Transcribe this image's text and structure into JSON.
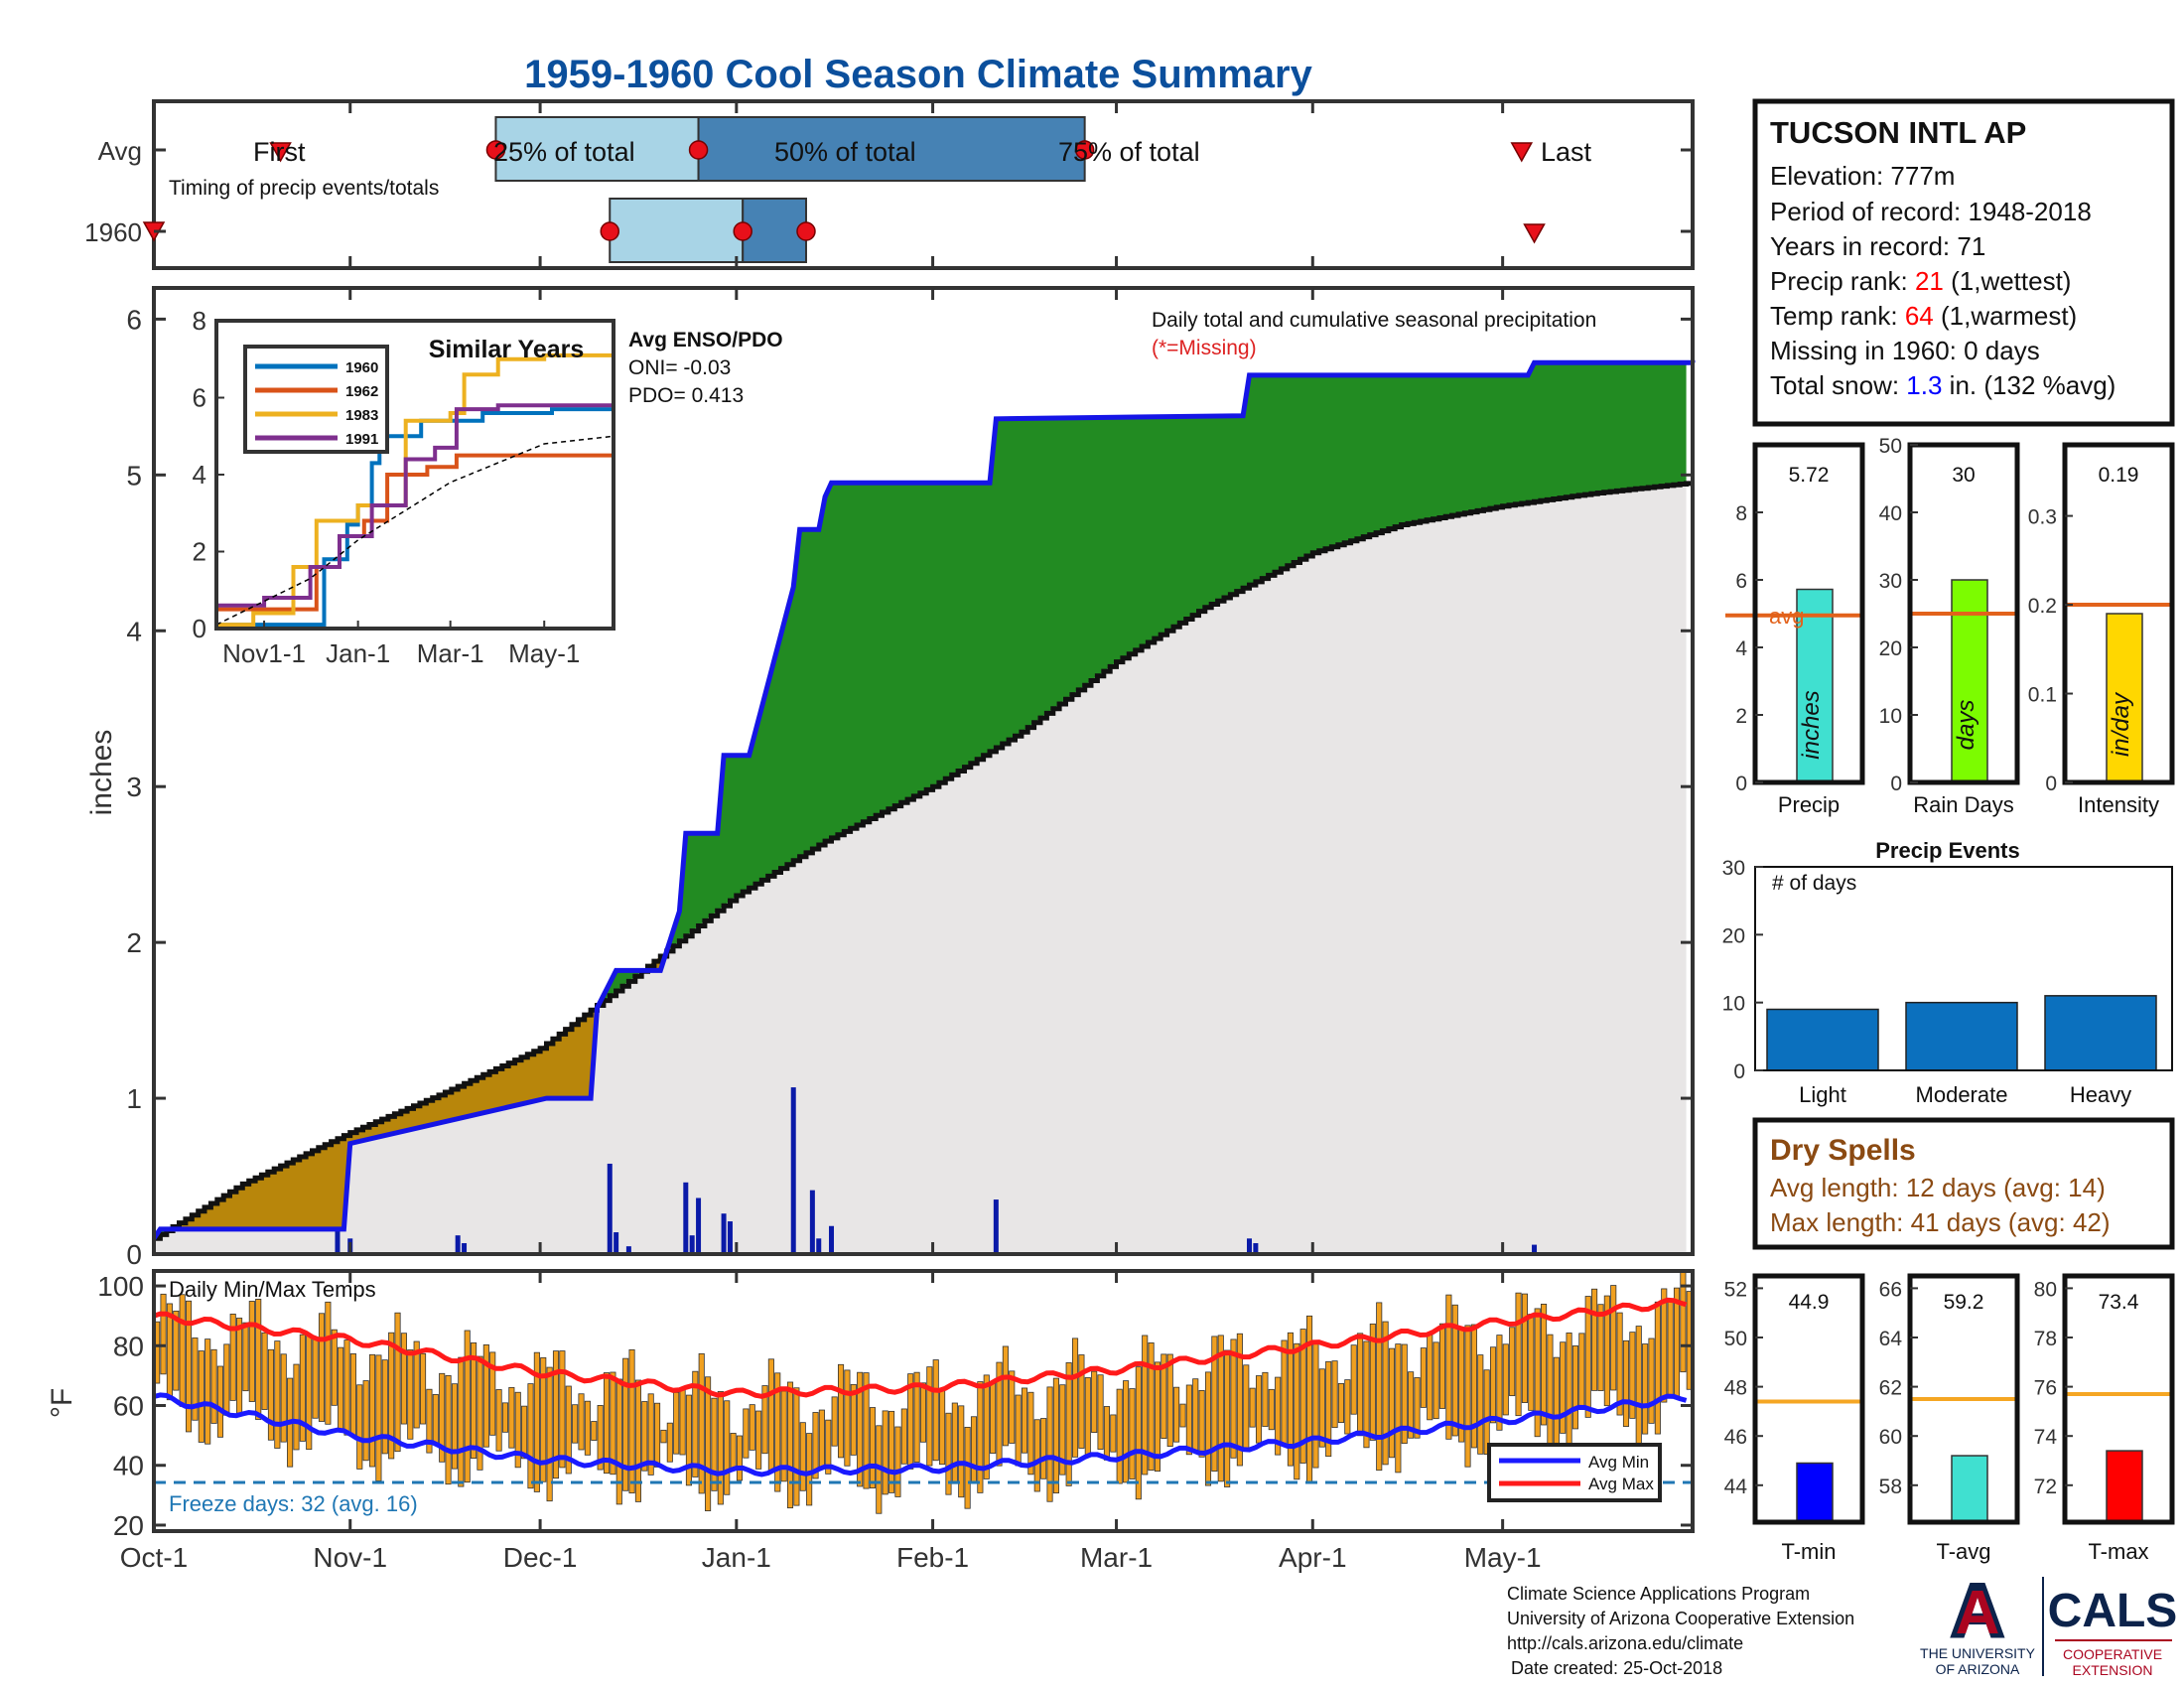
{
  "title": "1959-1960 Cool Season Climate Summary",
  "timing": {
    "rows": [
      "Avg",
      "1960"
    ],
    "caption": "Timing of precip events/totals",
    "labels": {
      "first": "First",
      "p25": "25% of total",
      "p50": "50% of total",
      "p75": "75% of total",
      "last": "Last"
    },
    "avg": {
      "first": "Oct-21",
      "p25": "Nov-24",
      "p50": "Dec-26",
      "p75": "Feb-25",
      "last": "May-04"
    },
    "year": {
      "first": "Oct-01",
      "p25": "Dec-12",
      "p50": "Jan-02",
      "p75": "Jan-12",
      "last": "May-06"
    }
  },
  "station": {
    "name": "TUCSON INTL AP",
    "elevation_label": "Elevation: ",
    "elevation": "777m",
    "period_label": "Period of record: ",
    "period": "1948-2018",
    "years_label": "Years in record: ",
    "years": "71",
    "precip_rank_label": "Precip rank: ",
    "precip_rank": "21",
    "precip_rank_note": " (1,wettest)",
    "temp_rank_label": "Temp rank: ",
    "temp_rank": "64",
    "temp_rank_note": " (1,warmest)",
    "missing_label": "Missing in 1960: ",
    "missing": "0 days",
    "snow_label": "Total snow: ",
    "snow": "1.3",
    "snow_note": " in. (132 %avg)"
  },
  "main_chart": {
    "ylabel": "inches",
    "annotation": "Daily total and cumulative seasonal precipitation",
    "missing_note": "(*=Missing)",
    "enso": {
      "title": "Avg ENSO/PDO",
      "oni": "ONI= -0.03",
      "pdo": "PDO= 0.413"
    },
    "yticks": [
      "0",
      "1",
      "2",
      "3",
      "4",
      "5",
      "6"
    ]
  },
  "similar_years": {
    "title": "Similar Years",
    "yticks": [
      "0",
      "2",
      "4",
      "6",
      "8"
    ],
    "xticks": [
      "Nov1-1",
      "Jan-1",
      "Mar-1",
      "May-1"
    ]
  },
  "temp_chart": {
    "ylabel": "°F",
    "title": "Daily Min/Max Temps",
    "freeze_note": "Freeze days: 32 (avg. 16)",
    "legend": [
      "Avg Min",
      "Avg Max"
    ],
    "yticks": [
      "20",
      "40",
      "60",
      "80",
      "100"
    ]
  },
  "xaxis_months": [
    "Oct-1",
    "Nov-1",
    "Dec-1",
    "Jan-1",
    "Feb-1",
    "Mar-1",
    "Apr-1",
    "May-1"
  ],
  "mini_bars": {
    "avg_label": "avg",
    "precip": {
      "label": "Precip",
      "value_text": "5.72",
      "unit": "inches"
    },
    "raindays": {
      "label": "Rain Days",
      "value_text": "30",
      "unit": "days"
    },
    "intensity": {
      "label": "Intensity",
      "value_text": "0.19",
      "unit": "in/day"
    }
  },
  "precip_events": {
    "title": "Precip Events",
    "sub": "# of days",
    "categories": [
      "Light",
      "Moderate",
      "Heavy"
    ],
    "yticks": [
      "0",
      "10",
      "20",
      "30"
    ]
  },
  "dry_spells": {
    "title": "Dry Spells",
    "avg_line": "Avg length: 12 days (avg: 14)",
    "max_line": "Max length: 41 days (avg: 42)"
  },
  "temp_bars": {
    "tmin": {
      "label": "T-min",
      "value_text": "44.9"
    },
    "tavg": {
      "label": "T-avg",
      "value_text": "59.2"
    },
    "tmax": {
      "label": "T-max",
      "value_text": "73.4"
    }
  },
  "footer": {
    "line1": "Climate Science Applications Program",
    "line2": "University of Arizona Cooperative Extension",
    "line3": "http://cals.arizona.edu/climate",
    "line4": "Date created: 25-Oct-2018"
  },
  "logos": {
    "ua_letter": "A",
    "ua_line1": "THE UNIVERSITY",
    "ua_line2": "OF ARIZONA",
    "cals": "CALS",
    "cals_line1": "COOPERATIVE",
    "cals_line2": "EXTENSION"
  },
  "colors": {
    "title": "#0b4f9c",
    "cumulative_line": "#1515e6",
    "above_avg_fill": "#228b22",
    "below_avg_fill": "#b8860b",
    "avg_area": "#e8e6e6",
    "daily_bars": "#0a1aa8",
    "temp_bars": "#f0a020",
    "avg_max": "#ff1a1a",
    "avg_min": "#1a1aff",
    "freeze_line": "#1f77b4",
    "avg_marker": "#e2621b",
    "event_bars": "#0b70be",
    "dry_spells": "#8b4a12",
    "rank_red": "#ff0000",
    "snow_blue": "#0000ff",
    "ua_red": "#ab0520",
    "ua_navy": "#0c234b"
  },
  "chart_data": [
    {
      "type": "area",
      "name": "Daily total and cumulative seasonal precipitation",
      "xlabel": "",
      "ylabel": "inches",
      "ylim": [
        0,
        6.2
      ],
      "x_axis": "dates Oct-1 to May-31",
      "season_total_1960": 5.72,
      "cumulative_1960": {
        "x": [
          "Oct-01",
          "Oct-02",
          "Oct-31",
          "Nov-01",
          "Dec-02",
          "Dec-09",
          "Dec-10",
          "Dec-12",
          "Dec-13",
          "Dec-20",
          "Dec-23",
          "Dec-24",
          "Dec-29",
          "Dec-30",
          "Jan-03",
          "Jan-10",
          "Jan-11",
          "Jan-14",
          "Jan-15",
          "Jan-16",
          "Feb-10",
          "Feb-11",
          "Mar-21",
          "Mar-22",
          "May-05",
          "May-06",
          "May-31"
        ],
        "y": [
          0.1,
          0.16,
          0.16,
          0.71,
          1.0,
          1.0,
          1.58,
          1.74,
          1.82,
          1.82,
          2.2,
          2.7,
          2.7,
          3.2,
          3.2,
          4.28,
          4.65,
          4.65,
          4.86,
          4.95,
          4.95,
          5.36,
          5.38,
          5.64,
          5.64,
          5.72,
          5.72
        ]
      },
      "cumulative_avg": {
        "x": [
          "Oct-01",
          "Oct-15",
          "Nov-01",
          "Nov-15",
          "Dec-01",
          "Dec-15",
          "Jan-01",
          "Jan-15",
          "Feb-01",
          "Feb-15",
          "Mar-01",
          "Mar-15",
          "Apr-01",
          "Apr-15",
          "May-01",
          "May-15",
          "May-31"
        ],
        "y": [
          0.1,
          0.45,
          0.78,
          1.02,
          1.32,
          1.75,
          2.3,
          2.65,
          3.0,
          3.35,
          3.8,
          4.15,
          4.5,
          4.68,
          4.8,
          4.88,
          4.95
        ]
      },
      "daily_1960": {
        "x": [
          "Oct-30",
          "Nov-01",
          "Nov-18",
          "Nov-19",
          "Dec-12",
          "Dec-13",
          "Dec-15",
          "Dec-24",
          "Dec-25",
          "Dec-26",
          "Dec-30",
          "Dec-31",
          "Jan-10",
          "Jan-13",
          "Jan-14",
          "Jan-16",
          "Feb-11",
          "Mar-22",
          "Mar-23",
          "May-06"
        ],
        "y": [
          0.15,
          0.1,
          0.12,
          0.07,
          0.58,
          0.14,
          0.05,
          0.46,
          0.12,
          0.36,
          0.26,
          0.21,
          1.07,
          0.41,
          0.1,
          0.18,
          0.35,
          0.1,
          0.07,
          0.06
        ]
      }
    },
    {
      "type": "line",
      "name": "Similar Years",
      "ylim": [
        0,
        8
      ],
      "x_axis": "dates Oct-1 to Jun-15",
      "series": [
        {
          "name": "1960",
          "color": "#0072bd",
          "x": [
            "Oct-01",
            "Dec-10",
            "Dec-25",
            "Jan-01",
            "Jan-10",
            "Jan-15",
            "Feb-11",
            "Mar-22",
            "May-06",
            "Jun-15"
          ],
          "y": [
            0.1,
            1.8,
            2.7,
            3.2,
            4.3,
            5.0,
            5.4,
            5.6,
            5.7,
            5.7
          ]
        },
        {
          "name": "1962",
          "color": "#d95319",
          "x": [
            "Oct-01",
            "Nov-15",
            "Dec-05",
            "Dec-20",
            "Jan-05",
            "Jan-20",
            "Feb-15",
            "Mar-05",
            "Apr-01",
            "Jun-15"
          ],
          "y": [
            0.5,
            0.5,
            1.6,
            2.4,
            2.8,
            4.0,
            4.2,
            4.5,
            4.5,
            4.5
          ]
        },
        {
          "name": "1983",
          "color": "#edb120",
          "x": [
            "Oct-01",
            "Oct-25",
            "Nov-20",
            "Dec-05",
            "Jan-01",
            "Feb-01",
            "Mar-01",
            "Mar-10",
            "Apr-01",
            "May-01",
            "Jun-15"
          ],
          "y": [
            0.1,
            0.4,
            1.6,
            2.8,
            3.2,
            5.4,
            5.6,
            6.6,
            7.0,
            7.1,
            7.1
          ]
        },
        {
          "name": "1991",
          "color": "#7e2f8e",
          "x": [
            "Oct-01",
            "Nov-01",
            "Dec-01",
            "Dec-20",
            "Jan-10",
            "Feb-01",
            "Feb-20",
            "Mar-05",
            "Apr-01",
            "Jun-15"
          ],
          "y": [
            0.6,
            0.8,
            1.6,
            2.4,
            3.2,
            4.4,
            4.7,
            5.7,
            5.8,
            5.8
          ]
        },
        {
          "name": "avg",
          "color": "#000000",
          "dashed": true,
          "x": [
            "Oct-01",
            "Dec-01",
            "Jan-01",
            "Mar-01",
            "May-01",
            "Jun-15"
          ],
          "y": [
            0.1,
            1.3,
            2.3,
            3.8,
            4.8,
            5.0
          ]
        }
      ]
    },
    {
      "type": "bar",
      "name": "Daily Min/Max Temps",
      "ylabel": "°F",
      "ylim": [
        18,
        105
      ],
      "freeze_threshold": 32,
      "note": "floating bars span daily min to max, Oct-01 to May-31",
      "avg_max": {
        "x": [
          "Oct-01",
          "Nov-01",
          "Dec-01",
          "Jan-01",
          "Feb-01",
          "Mar-01",
          "Apr-01",
          "May-01",
          "May-31"
        ],
        "y": [
          90,
          82,
          71,
          64,
          66,
          72,
          80,
          88,
          95
        ]
      },
      "avg_min": {
        "x": [
          "Oct-01",
          "Nov-01",
          "Dec-01",
          "Jan-01",
          "Feb-01",
          "Mar-01",
          "Apr-01",
          "May-01",
          "May-31"
        ],
        "y": [
          63,
          50,
          42,
          38,
          39,
          43,
          48,
          55,
          63
        ]
      }
    },
    {
      "type": "bar",
      "name": "Precip",
      "categories": [
        "Precip"
      ],
      "values": [
        5.72
      ],
      "avg": 4.95,
      "ylim": [
        0,
        10
      ]
    },
    {
      "type": "bar",
      "name": "Rain Days",
      "categories": [
        "Rain Days"
      ],
      "values": [
        30
      ],
      "avg": 25,
      "ylim": [
        0,
        50
      ]
    },
    {
      "type": "bar",
      "name": "Intensity",
      "categories": [
        "Intensity"
      ],
      "values": [
        0.19
      ],
      "avg": 0.2,
      "ylim": [
        0,
        0.38
      ]
    },
    {
      "type": "bar",
      "name": "Precip Events",
      "categories": [
        "Light",
        "Moderate",
        "Heavy"
      ],
      "values": [
        9,
        10,
        11
      ],
      "ylim": [
        0,
        30
      ]
    },
    {
      "type": "bar",
      "name": "T-min",
      "categories": [
        "T-min"
      ],
      "values": [
        44.9
      ],
      "avg": 47.4,
      "ylim": [
        42.5,
        52.5
      ]
    },
    {
      "type": "bar",
      "name": "T-avg",
      "categories": [
        "T-avg"
      ],
      "values": [
        59.2
      ],
      "avg": 61.5,
      "ylim": [
        56.5,
        66.5
      ]
    },
    {
      "type": "bar",
      "name": "T-max",
      "categories": [
        "T-max"
      ],
      "values": [
        73.4
      ],
      "avg": 75.7,
      "ylim": [
        70.5,
        80.5
      ]
    }
  ]
}
